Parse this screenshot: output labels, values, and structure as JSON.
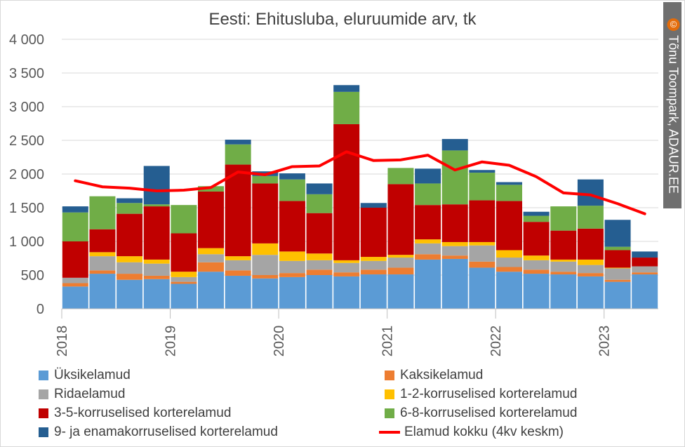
{
  "chart_data": {
    "type": "bar",
    "stacked": true,
    "title": "Eesti: Ehitusluba, eluruumide arv, tk",
    "xlabel": "",
    "ylabel": "",
    "ylim": [
      0,
      4000
    ],
    "yticks": [
      "0",
      "500",
      "1 000",
      "1 500",
      "2 000",
      "2 500",
      "3 000",
      "3 500",
      "4 000"
    ],
    "ytick_values": [
      0,
      500,
      1000,
      1500,
      2000,
      2500,
      3000,
      3500,
      4000
    ],
    "year_labels": [
      "2018",
      "2019",
      "2020",
      "2021",
      "2022",
      "2023"
    ],
    "categories": [
      "2018Q1",
      "2018Q2",
      "2018Q3",
      "2018Q4",
      "2019Q1",
      "2019Q2",
      "2019Q3",
      "2019Q4",
      "2020Q1",
      "2020Q2",
      "2020Q3",
      "2020Q4",
      "2021Q1",
      "2021Q2",
      "2021Q3",
      "2021Q4",
      "2022Q1",
      "2022Q2",
      "2022Q3",
      "2022Q4",
      "2023Q1",
      "2023Q2"
    ],
    "grid": true,
    "legend_position": "bottom",
    "series": [
      {
        "name": "Üksikelamud",
        "color": "#5b9bd5",
        "values": [
          330,
          520,
          430,
          440,
          370,
          550,
          490,
          450,
          470,
          500,
          480,
          510,
          510,
          730,
          740,
          610,
          550,
          520,
          510,
          480,
          400,
          510
        ]
      },
      {
        "name": "Kaksikelamud",
        "color": "#ed7d31",
        "values": [
          50,
          50,
          90,
          50,
          30,
          140,
          80,
          50,
          60,
          80,
          60,
          70,
          100,
          80,
          50,
          90,
          70,
          60,
          40,
          50,
          30,
          30
        ]
      },
      {
        "name": "Ridaelamud",
        "color": "#a5a5a5",
        "values": [
          80,
          210,
          170,
          180,
          70,
          120,
          150,
          300,
          180,
          140,
          140,
          130,
          150,
          160,
          140,
          240,
          140,
          140,
          150,
          120,
          170,
          90
        ]
      },
      {
        "name": "1-2-korruselised korterelamud",
        "color": "#ffc000",
        "values": [
          0,
          60,
          90,
          60,
          80,
          90,
          60,
          170,
          140,
          100,
          40,
          60,
          40,
          60,
          60,
          50,
          110,
          70,
          30,
          80,
          10,
          0
        ]
      },
      {
        "name": "3-5-korruselised korterelamud",
        "color": "#c00000",
        "values": [
          540,
          340,
          630,
          790,
          570,
          840,
          1360,
          890,
          750,
          600,
          2020,
          730,
          1050,
          510,
          560,
          620,
          730,
          500,
          430,
          460,
          260,
          130
        ]
      },
      {
        "name": "6-8-korruselised korterelamud",
        "color": "#70ad47",
        "values": [
          430,
          490,
          160,
          30,
          420,
          80,
          300,
          110,
          320,
          280,
          480,
          0,
          240,
          320,
          800,
          410,
          240,
          90,
          360,
          340,
          50,
          0
        ]
      },
      {
        "name": "9- ja enamakorruselised korterelamud",
        "color": "#255e91",
        "values": [
          90,
          0,
          70,
          570,
          0,
          0,
          70,
          70,
          90,
          160,
          100,
          70,
          0,
          220,
          170,
          40,
          40,
          60,
          0,
          390,
          400,
          90
        ]
      }
    ],
    "line_series": {
      "name": "Elamud kokku (4kv keskm)",
      "color": "#ff0000",
      "values": [
        1900,
        1810,
        1790,
        1750,
        1760,
        1800,
        2030,
        1990,
        2110,
        2120,
        2330,
        2200,
        2210,
        2280,
        2060,
        2180,
        2130,
        1960,
        1720,
        1690,
        1560,
        1410
      ]
    }
  },
  "watermark": {
    "symbol": "©",
    "text": "Tõnu Toompark, ADAUR.EE",
    "bg_color": "#6f6f6f",
    "symbol_color": "#e46c0a"
  }
}
